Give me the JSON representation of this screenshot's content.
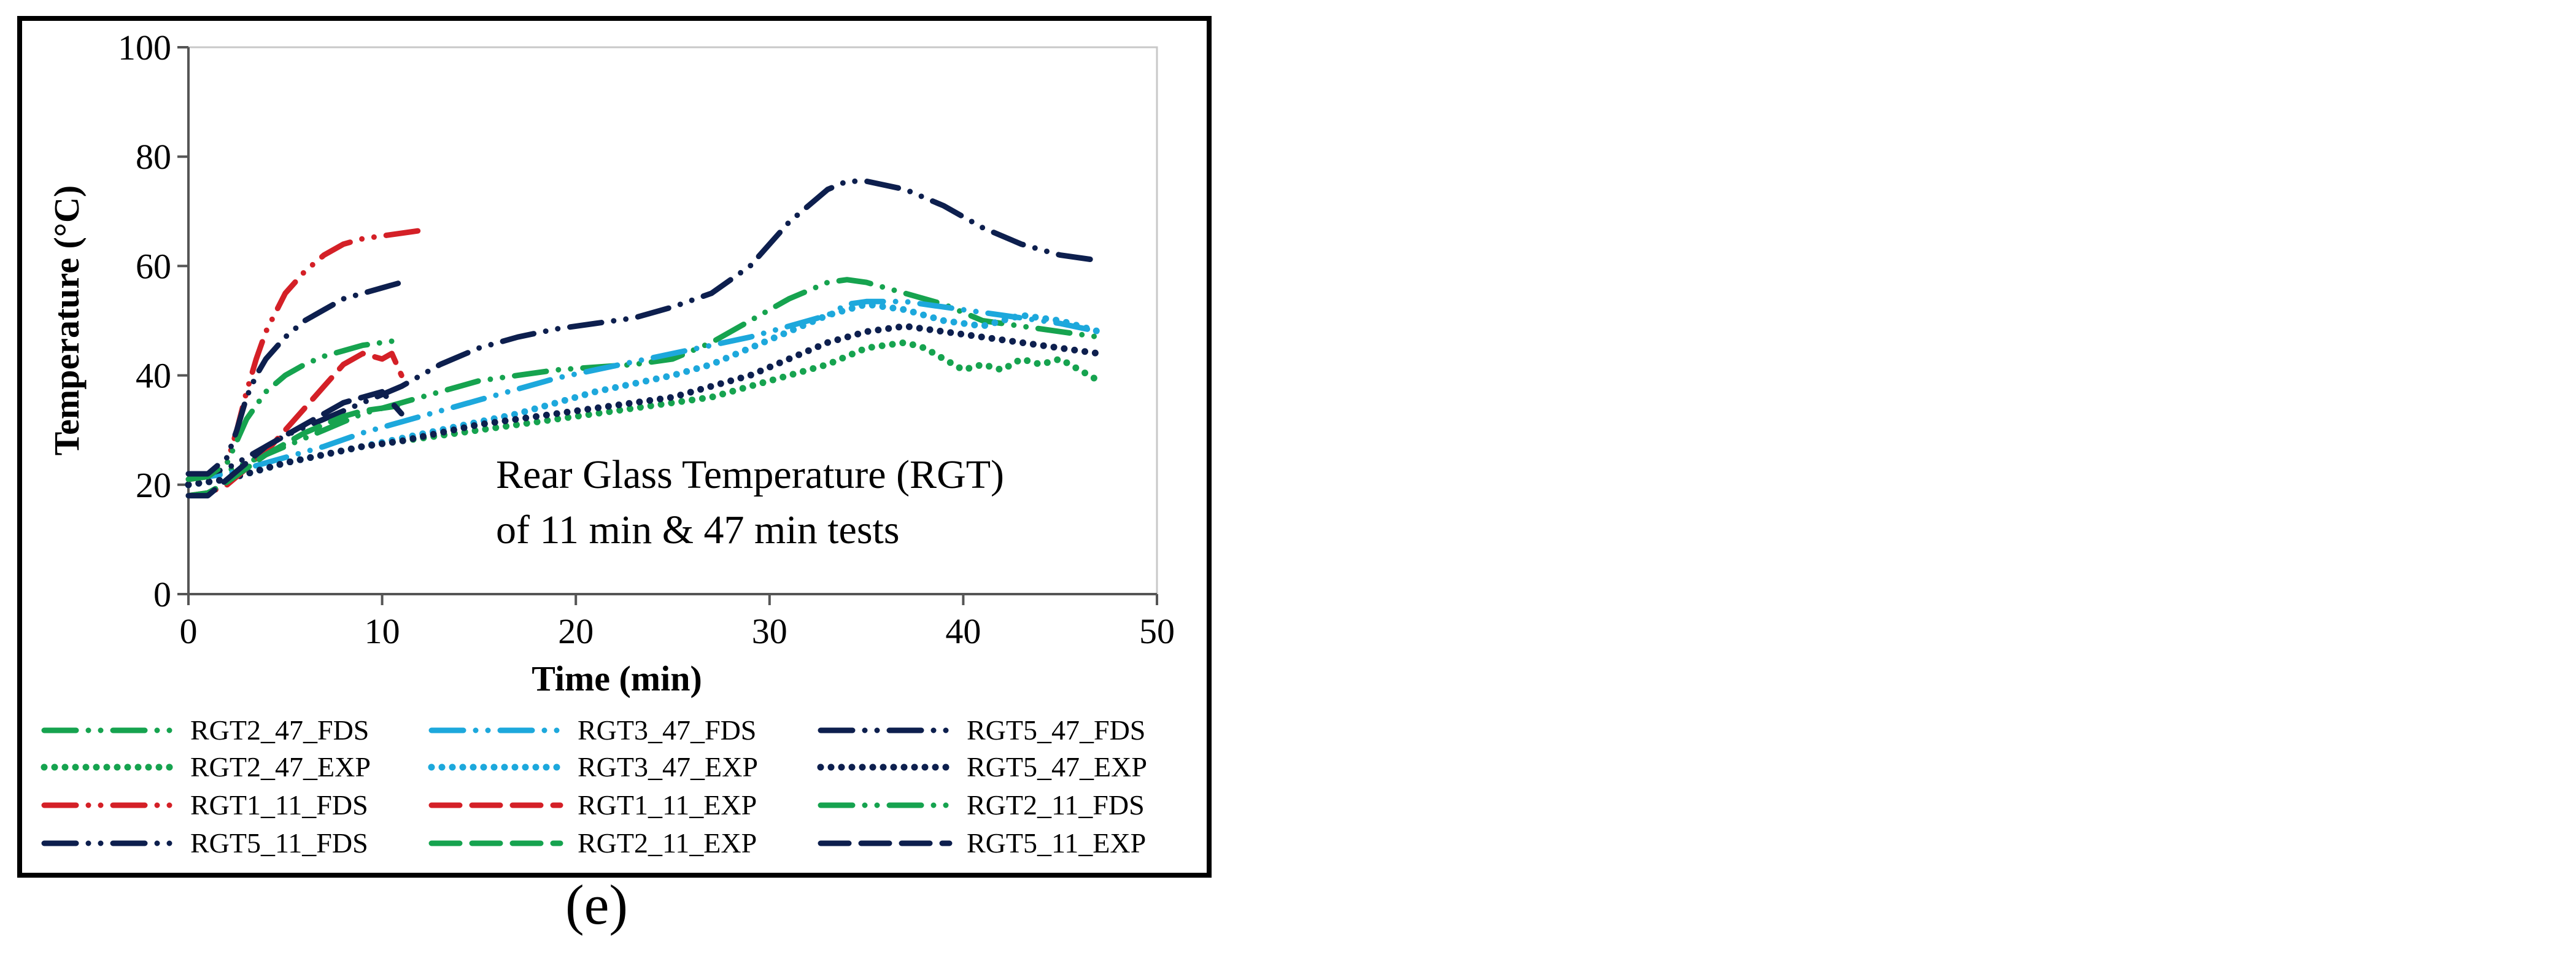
{
  "chart_data": {
    "type": "line",
    "xlabel": "Time (min)",
    "ylabel": "Temperature (°C)",
    "xlim": [
      0,
      50
    ],
    "ylim": [
      0,
      100
    ],
    "xticks": [
      0,
      10,
      20,
      30,
      40,
      50
    ],
    "yticks": [
      0,
      20,
      40,
      60,
      80,
      100
    ],
    "grid": false,
    "legend_placement": "bottom",
    "annotation": [
      "Rear Glass Temperature (RGT)",
      "of 11 min & 47 min tests"
    ],
    "caption": "(e)",
    "series": [
      {
        "name": "RGT2_47_FDS",
        "color": "#16a34f",
        "style": "dashdot",
        "x": [
          0,
          1,
          2,
          3,
          4,
          5,
          7,
          9,
          11,
          13,
          15,
          17,
          19,
          21,
          23,
          25,
          27,
          29,
          31,
          33,
          34,
          35,
          37,
          39,
          41,
          43,
          45,
          47
        ],
        "y": [
          21,
          21.5,
          22.5,
          24,
          25.5,
          27,
          30,
          33,
          35,
          37,
          39,
          40,
          41,
          41.5,
          42,
          43,
          46,
          50,
          54,
          57,
          57.5,
          57,
          55,
          53,
          50,
          49,
          48,
          47
        ]
      },
      {
        "name": "RGT3_47_FDS",
        "color": "#1da8dc",
        "style": "dashdot",
        "x": [
          0,
          1,
          2,
          3,
          4,
          5,
          7,
          9,
          11,
          13,
          15,
          17,
          19,
          21,
          23,
          25,
          27,
          29,
          31,
          33,
          34,
          35,
          37,
          39,
          41,
          43,
          45,
          47
        ],
        "y": [
          21,
          21.5,
          22,
          23,
          24,
          25,
          27,
          29.5,
          31.5,
          33.5,
          35.5,
          37.5,
          39.5,
          41,
          42.5,
          44,
          45.5,
          47,
          49,
          51,
          53,
          53.5,
          53.5,
          52.5,
          51.5,
          50.5,
          49.5,
          48
        ]
      },
      {
        "name": "RGT5_47_FDS",
        "color": "#0d1f4e",
        "style": "dashdot",
        "x": [
          0,
          1,
          2,
          3,
          4,
          5,
          7,
          9,
          11,
          13,
          15,
          17,
          19,
          21,
          23,
          25,
          27,
          29,
          31,
          33,
          34,
          35,
          37,
          39,
          41,
          43,
          45,
          47
        ],
        "y": [
          22,
          22,
          23,
          25,
          27,
          29,
          32,
          35,
          38,
          42,
          45,
          47,
          48.5,
          49.5,
          50.5,
          52.5,
          55,
          60,
          68,
          74,
          75.5,
          75.5,
          74,
          71,
          67,
          64,
          62,
          61
        ]
      },
      {
        "name": "RGT2_47_EXP",
        "color": "#16a34f",
        "style": "dotted",
        "x": [
          0,
          1,
          2,
          3,
          4,
          5,
          7,
          9,
          11,
          13,
          15,
          17,
          19,
          21,
          23,
          25,
          27,
          29,
          31,
          33,
          35,
          37,
          38,
          39,
          40,
          41,
          42,
          43,
          44,
          45,
          46,
          47
        ],
        "y": [
          20,
          20.5,
          21,
          22,
          23,
          24,
          25.5,
          27,
          28,
          29,
          30,
          31,
          32,
          33,
          34,
          35,
          36,
          38,
          40,
          42,
          45,
          46,
          45,
          43,
          41,
          42,
          41,
          43,
          42,
          43,
          41,
          39
        ]
      },
      {
        "name": "RGT3_47_EXP",
        "color": "#1da8dc",
        "style": "dotted",
        "x": [
          0,
          1,
          2,
          3,
          4,
          5,
          7,
          9,
          11,
          13,
          15,
          17,
          19,
          21,
          23,
          25,
          27,
          29,
          31,
          33,
          35,
          37,
          39,
          41,
          43,
          45,
          47
        ],
        "y": [
          20,
          20.5,
          21,
          22,
          23,
          24,
          25.5,
          27,
          28.5,
          30,
          31.5,
          33,
          35,
          37,
          38.5,
          40,
          42,
          45,
          48,
          51,
          53,
          52,
          50,
          49,
          51,
          50,
          48
        ]
      },
      {
        "name": "RGT5_47_EXP",
        "color": "#0d1f4e",
        "style": "dotted",
        "x": [
          0,
          1,
          2,
          3,
          4,
          5,
          7,
          9,
          11,
          13,
          15,
          17,
          19,
          21,
          23,
          25,
          27,
          29,
          31,
          33,
          35,
          37,
          39,
          41,
          43,
          45,
          47
        ],
        "y": [
          20,
          20.5,
          21,
          22,
          23,
          24,
          25.5,
          27,
          28,
          29.5,
          31,
          32,
          33,
          34,
          35,
          36,
          38,
          40,
          43,
          46,
          48,
          49,
          48,
          47,
          46,
          45,
          44
        ]
      },
      {
        "name": "RGT1_11_FDS",
        "color": "#d42027",
        "style": "dashdot",
        "x": [
          0,
          1,
          2,
          2.5,
          3,
          3.5,
          4,
          5,
          6,
          7,
          8,
          9,
          10,
          11,
          12
        ],
        "y": [
          21,
          21.5,
          24,
          30,
          37,
          43,
          48,
          55,
          59,
          62,
          64,
          65,
          65.5,
          66,
          66.5
        ]
      },
      {
        "name": "RGT1_11_EXP",
        "color": "#d42027",
        "style": "dashed",
        "x": [
          0,
          1,
          2,
          3,
          4,
          5,
          6,
          7,
          8,
          9,
          10,
          10.5,
          11
        ],
        "y": [
          18,
          18.5,
          20,
          23,
          26,
          30,
          34,
          38,
          42,
          44,
          43,
          44,
          40
        ]
      },
      {
        "name": "RGT2_11_FDS",
        "color": "#16a34f",
        "style": "dashdot",
        "x": [
          0,
          1,
          2,
          3,
          4,
          5,
          6,
          7,
          8,
          9,
          10,
          11
        ],
        "y": [
          21,
          21.5,
          24,
          32,
          37,
          40,
          42,
          43.5,
          44.5,
          45.5,
          46,
          46.5
        ]
      },
      {
        "name": "RGT5_11_FDS",
        "color": "#0d1f4e",
        "style": "dashdot",
        "x": [
          0,
          1,
          2,
          2.5,
          3,
          3.5,
          4,
          5,
          6,
          7,
          8,
          9,
          10,
          11
        ],
        "y": [
          22,
          22,
          25,
          30,
          36,
          40,
          43,
          47,
          50,
          52,
          54,
          55,
          56,
          57
        ]
      },
      {
        "name": "RGT2_11_EXP",
        "color": "#16a34f",
        "style": "dashed",
        "x": [
          0,
          1,
          2,
          3,
          4,
          5,
          6,
          7,
          8,
          9,
          10,
          11
        ],
        "y": [
          18,
          18.5,
          20.5,
          23,
          25.5,
          27.5,
          29.5,
          31,
          32.5,
          33.5,
          34,
          34.5
        ]
      },
      {
        "name": "RGT5_11_EXP",
        "color": "#0d1f4e",
        "style": "dashed",
        "x": [
          0,
          1,
          2,
          3,
          4,
          5,
          6,
          7,
          8,
          9,
          10,
          11
        ],
        "y": [
          18,
          18,
          21,
          24,
          27,
          29,
          31,
          33,
          35,
          36,
          37,
          33
        ]
      }
    ]
  }
}
